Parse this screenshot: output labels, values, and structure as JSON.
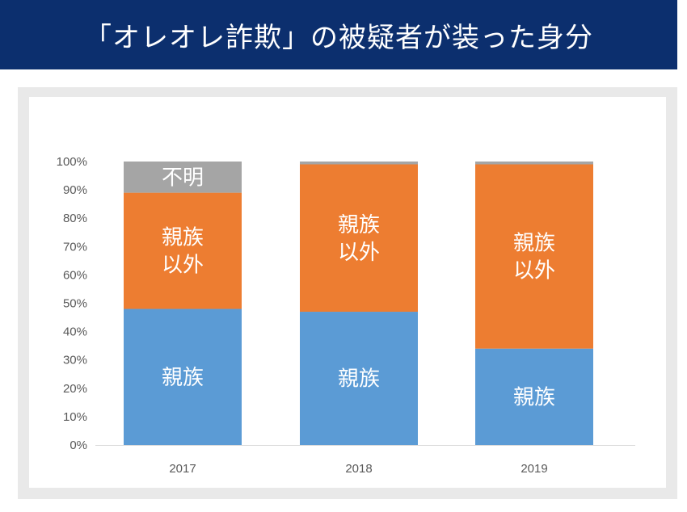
{
  "title": "「オレオレ詐欺」の被疑者が装った身分",
  "colors": {
    "title_bar": "#0c2f6e",
    "relatives": "#5b9bd5",
    "non_relatives": "#ed7d31",
    "unknown": "#a5a5a5"
  },
  "chart_data": {
    "type": "bar",
    "stacked": true,
    "categories": [
      "2017",
      "2018",
      "2019"
    ],
    "series": [
      {
        "name": "親族",
        "values": [
          48,
          47,
          34
        ]
      },
      {
        "name": "親族以外",
        "values": [
          41,
          52,
          65
        ]
      },
      {
        "name": "不明",
        "values": [
          11,
          1,
          1
        ]
      }
    ],
    "segment_labels": [
      [
        "親族",
        "親族以外",
        "不明"
      ],
      [
        "親族",
        "親族以外",
        ""
      ],
      [
        "親族",
        "親族以外",
        ""
      ]
    ],
    "yticks": [
      "0%",
      "10%",
      "20%",
      "30%",
      "40%",
      "50%",
      "60%",
      "70%",
      "80%",
      "90%",
      "100%"
    ],
    "ylim": [
      0,
      100
    ],
    "xlabel": "",
    "ylabel": "",
    "legend": "none",
    "grid": false
  }
}
